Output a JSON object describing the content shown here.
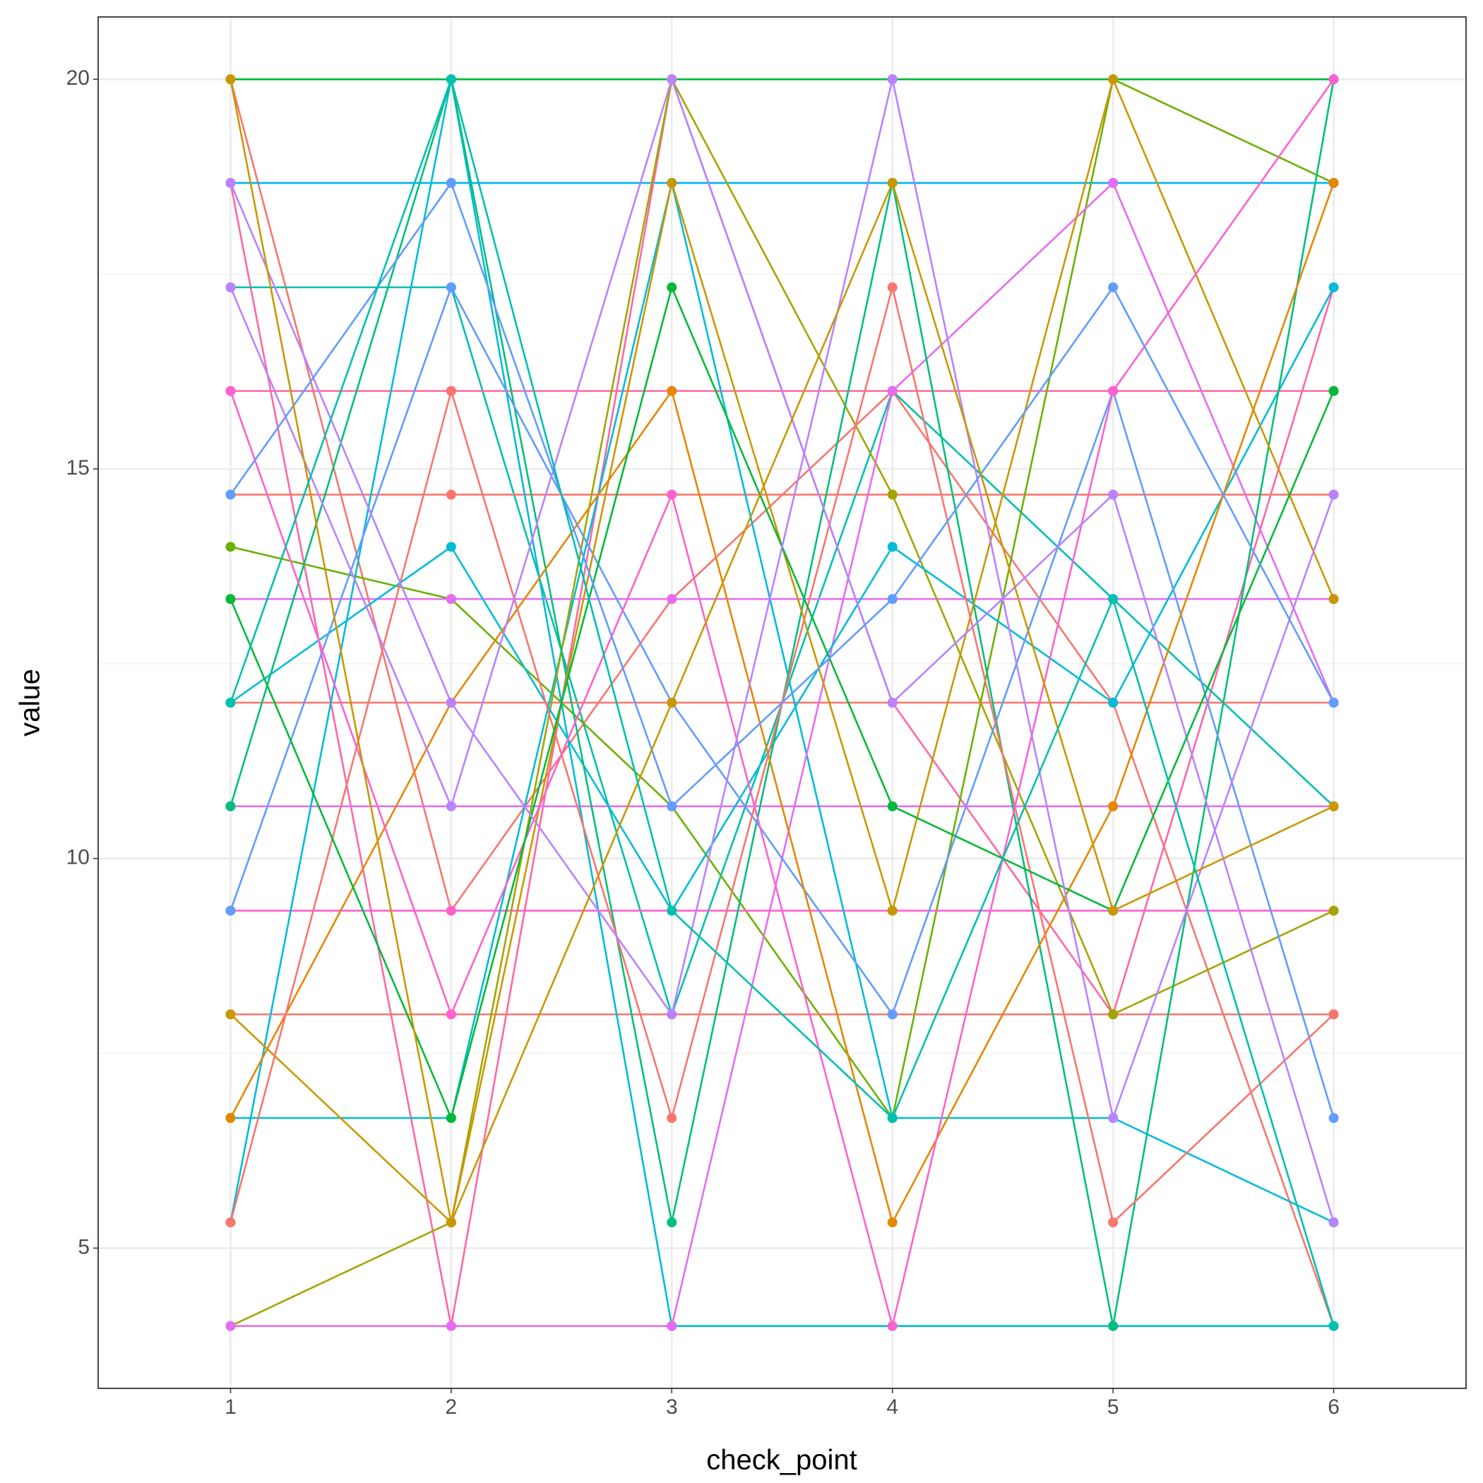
{
  "chart_data": {
    "type": "line",
    "x_label": "check_point",
    "y_label": "value",
    "x": [
      1,
      2,
      3,
      4,
      5,
      6
    ],
    "xlim": [
      0.4,
      6.6
    ],
    "xticks": [
      1,
      2,
      3,
      4,
      5,
      6
    ],
    "ylim": [
      3.2,
      20.8
    ],
    "yticks": [
      5,
      10,
      15,
      20
    ],
    "y_minor_grid": [
      7.5,
      12.5,
      17.5
    ],
    "grid": true,
    "markers": true,
    "series": [
      {
        "color": "#00BA38",
        "values": [
          20,
          20,
          20,
          20,
          20,
          20
        ]
      },
      {
        "color": "#F8766D",
        "values": [
          20,
          9.33,
          13.33,
          16,
          12,
          4
        ]
      },
      {
        "color": "#00B0F6",
        "values": [
          18.67,
          18.67,
          18.67,
          18.67,
          18.67,
          18.67
        ]
      },
      {
        "color": "#FF67A4",
        "values": [
          18.67,
          4,
          20,
          12,
          8,
          17.33
        ]
      },
      {
        "color": "#00C0AF",
        "values": [
          17.33,
          17.33,
          8,
          16,
          13.33,
          10.67
        ]
      },
      {
        "color": "#FF67A4",
        "values": [
          16,
          16,
          16,
          16,
          16,
          16
        ]
      },
      {
        "color": "#F8766D",
        "values": [
          14.67,
          14.67,
          14.67,
          14.67,
          14.67,
          14.67
        ]
      },
      {
        "color": "#6BB100",
        "values": [
          14,
          13.33,
          10.67,
          6.67,
          20,
          18.67
        ]
      },
      {
        "color": "#E76BF3",
        "values": [
          13.33,
          13.33,
          13.33,
          13.33,
          13.33,
          13.33
        ]
      },
      {
        "color": "#F8766D",
        "values": [
          12,
          12,
          12,
          12,
          12,
          12
        ]
      },
      {
        "color": "#E76BF3",
        "values": [
          10.67,
          10.67,
          10.67,
          10.67,
          10.67,
          10.67
        ]
      },
      {
        "color": "#FD61D1",
        "values": [
          9.33,
          9.33,
          9.33,
          9.33,
          9.33,
          9.33
        ]
      },
      {
        "color": "#F8766D",
        "values": [
          8,
          8,
          8,
          8,
          8,
          8
        ]
      },
      {
        "color": "#00BCD8",
        "values": [
          6.67,
          6.67,
          18.67,
          6.67,
          6.67,
          5.33
        ]
      },
      {
        "color": "#00BCD8",
        "values": [
          5.33,
          20,
          4,
          4,
          4,
          4
        ]
      },
      {
        "color": "#A3A500",
        "values": [
          4,
          5.33,
          20,
          14.67,
          8,
          9.33
        ]
      },
      {
        "color": "#E76BF3",
        "values": [
          4,
          4,
          4,
          16,
          18.67,
          12
        ]
      },
      {
        "color": "#00BCD8",
        "values": [
          12,
          14,
          9.33,
          14,
          12,
          17.33
        ]
      },
      {
        "color": "#00BF7D",
        "values": [
          10.67,
          20,
          5.33,
          18.67,
          4,
          20
        ]
      },
      {
        "color": "#619CFF",
        "values": [
          9.33,
          17.33,
          12,
          8,
          16,
          6.67
        ]
      },
      {
        "color": "#C99800",
        "values": [
          8,
          5.33,
          18.67,
          9.33,
          20,
          13.33
        ]
      },
      {
        "color": "#E58700",
        "values": [
          6.67,
          12,
          16,
          5.33,
          10.67,
          18.67
        ]
      },
      {
        "color": "#F8766D",
        "values": [
          5.33,
          16,
          6.67,
          17.33,
          5.33,
          8
        ]
      },
      {
        "color": "#FD61D1",
        "values": [
          16,
          8,
          14.67,
          4,
          16,
          20
        ]
      },
      {
        "color": "#B983FF",
        "values": [
          17.33,
          10.67,
          20,
          12,
          14.67,
          5.33
        ]
      },
      {
        "color": "#00BA38",
        "values": [
          13.33,
          6.67,
          17.33,
          10.67,
          9.33,
          16
        ]
      },
      {
        "color": "#B983FF",
        "values": [
          18.67,
          12,
          8,
          20,
          6.67,
          14.67
        ]
      },
      {
        "color": "#619CFF",
        "values": [
          14.67,
          18.67,
          10.67,
          13.33,
          17.33,
          12
        ]
      },
      {
        "color": "#C99800",
        "values": [
          20,
          5.33,
          12,
          18.67,
          9.33,
          10.67
        ]
      },
      {
        "color": "#00C0AF",
        "values": [
          12,
          20,
          9.33,
          6.67,
          13.33,
          4
        ]
      }
    ]
  }
}
